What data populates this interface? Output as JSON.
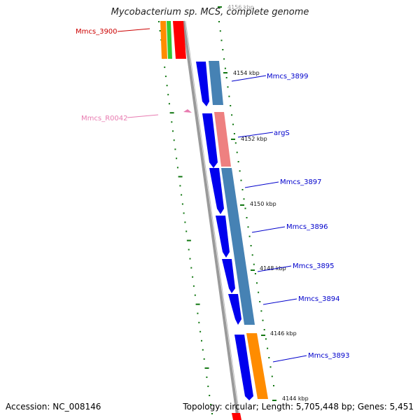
{
  "title": "Mycobacterium sp. MCS, complete genome",
  "footer": {
    "accession": "Accession: NC_008146",
    "stats": "Topology: circular; Length: 5,705,448 bp; Genes: 5,451"
  },
  "scale_labels": [
    "4156 kbp",
    "4154 kbp",
    "4152 kbp",
    "4150 kbp",
    "4148 kbp",
    "4146 kbp",
    "4144 kbp"
  ],
  "genes": [
    {
      "label": "Mmcs_3900",
      "color": "#cc0000"
    },
    {
      "label": "Mmcs_3899",
      "color": "#0000cc"
    },
    {
      "label": "Mmcs_R0042",
      "color": "#e87bb0"
    },
    {
      "label": "argS",
      "color": "#0000cc"
    },
    {
      "label": "Mmcs_3897",
      "color": "#0000cc"
    },
    {
      "label": "Mmcs_3896",
      "color": "#0000cc"
    },
    {
      "label": "Mmcs_3895",
      "color": "#0000cc"
    },
    {
      "label": "Mmcs_3894",
      "color": "#0000cc"
    },
    {
      "label": "Mmcs_3893",
      "color": "#0000cc"
    }
  ],
  "colors": {
    "cds_strand": "#0000ee",
    "cog_steelblue": "#4682b4",
    "cog_orange": "#ff8c00",
    "cog_red": "#ff0000",
    "cog_green": "#33cc33",
    "cog_pink": "#ee8080",
    "backbone": "#888888",
    "tick_green": "#117711"
  }
}
